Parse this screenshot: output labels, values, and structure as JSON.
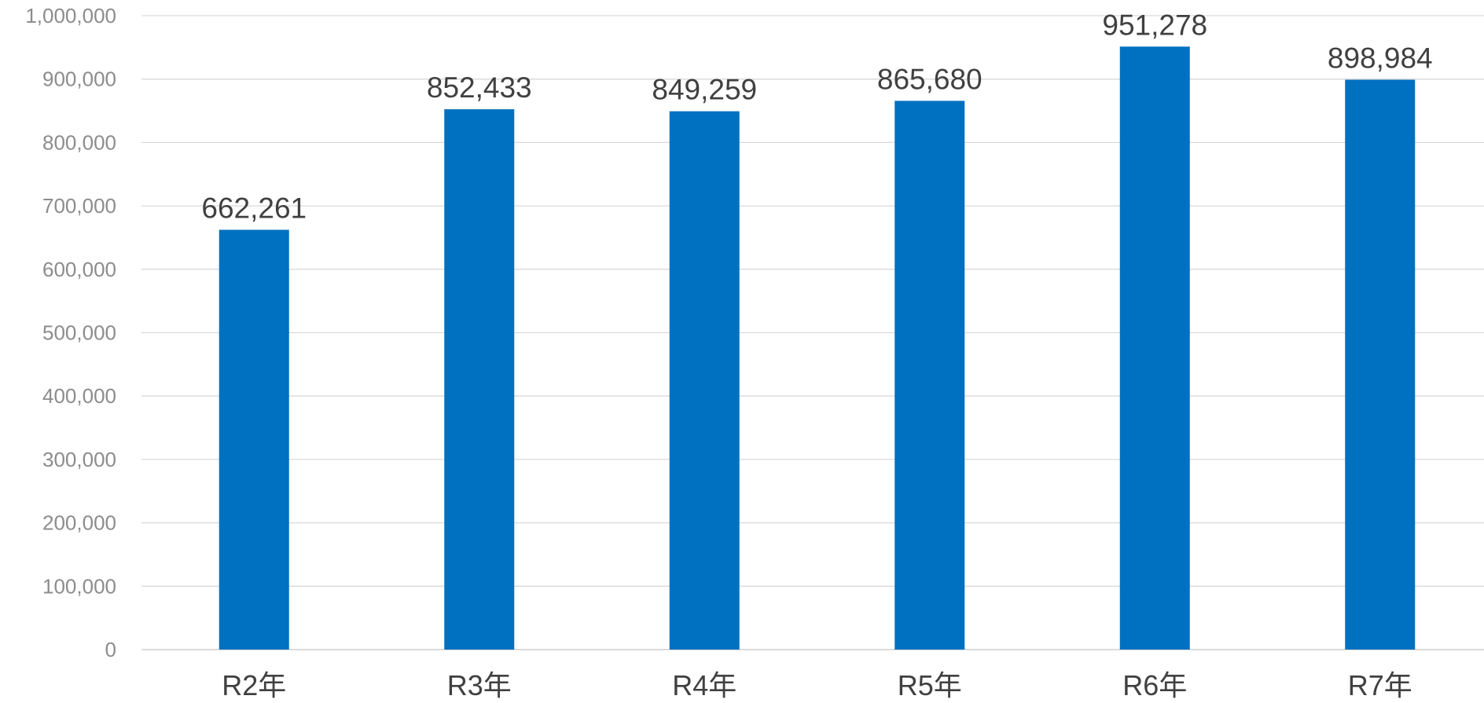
{
  "chart_data": {
    "type": "bar",
    "title": "",
    "xlabel": "",
    "ylabel": "",
    "categories": [
      "R2年",
      "R3年",
      "R4年",
      "R5年",
      "R6年",
      "R7年"
    ],
    "values": [
      662261,
      852433,
      849259,
      865680,
      951278,
      898984
    ],
    "value_labels": [
      "662,261",
      "852,433",
      "849,259",
      "865,680",
      "951,278",
      "898,984"
    ],
    "ylim": [
      0,
      1000000
    ],
    "y_ticks": [
      0,
      100000,
      200000,
      300000,
      400000,
      500000,
      600000,
      700000,
      800000,
      900000,
      1000000
    ],
    "y_tick_labels": [
      "0",
      "100,000",
      "200,000",
      "300,000",
      "400,000",
      "500,000",
      "600,000",
      "700,000",
      "800,000",
      "900,000",
      "1,000,000"
    ],
    "grid": true,
    "legend": "none",
    "colors": {
      "bar": "#0070c0",
      "gridline": "#d9d9d9",
      "tick_text": "#8c8c8c",
      "category_text": "#404040",
      "label_text": "#404040"
    }
  }
}
